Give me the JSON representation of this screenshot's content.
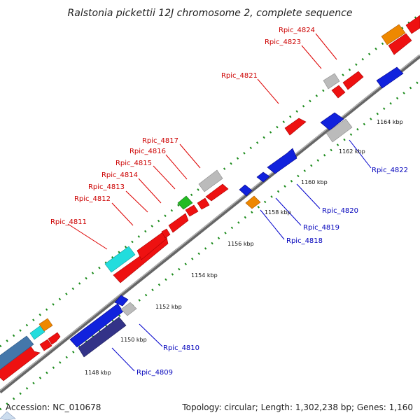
{
  "title": "Ralstonia pickettii 12J chromosome 2, complete sequence",
  "footer": {
    "accession": "Accession: NC_010678",
    "summary": "Topology: circular; Length: 1,302,238 bp; Genes: 1,160"
  },
  "colors": {
    "forward_label": "#cc0000",
    "reverse_label": "#0000bb",
    "backbone": "#777777",
    "ticks": "#1a8a1a",
    "gene_red": "#ee1111",
    "gene_blue": "#1122dd",
    "gene_gray": "#bbbbbb",
    "gene_orange": "#ee8800",
    "gene_cyan": "#22dddd",
    "gene_green": "#22bb22",
    "gene_steel": "#4477aa",
    "gene_navy": "#333388"
  },
  "scale_ticks": [
    "1148 kbp",
    "1150 kbp",
    "1152 kbp",
    "1154 kbp",
    "1156 kbp",
    "1158 kbp",
    "1160 kbp",
    "1162 kbp",
    "1164 kbp"
  ],
  "forward_labels": [
    "Rpic_4811",
    "Rpic_4812",
    "Rpic_4813",
    "Rpic_4814",
    "Rpic_4815",
    "Rpic_4816",
    "Rpic_4817",
    "Rpic_4821",
    "Rpic_4823",
    "Rpic_4824"
  ],
  "reverse_labels": [
    "Rpic_4809",
    "Rpic_4810",
    "Rpic_4818",
    "Rpic_4819",
    "Rpic_4820",
    "Rpic_4822"
  ]
}
